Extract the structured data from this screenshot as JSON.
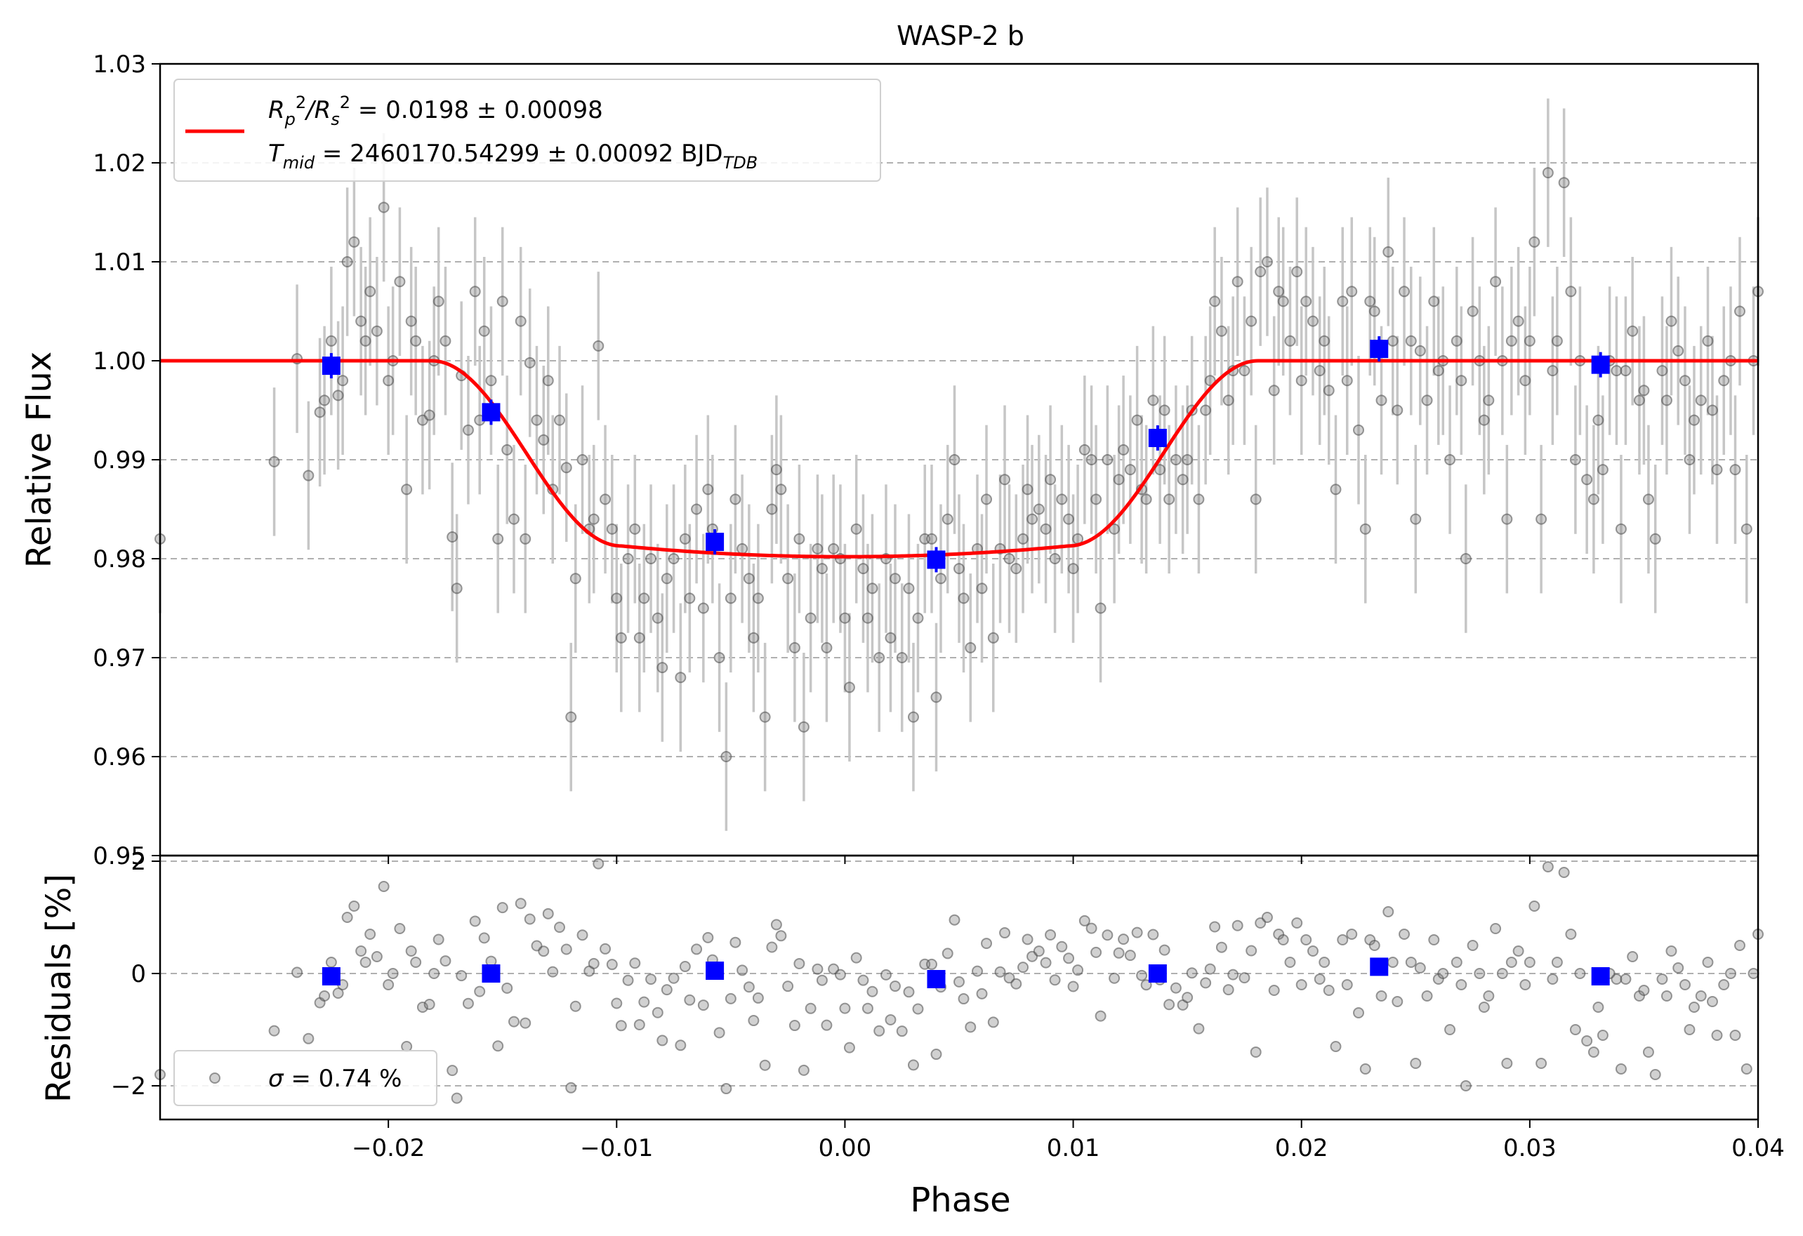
{
  "chart_data": [
    {
      "type": "scatter",
      "title": "WASP-2 b",
      "xlabel": "",
      "ylabel": "Relative Flux",
      "xlim": [
        -0.03,
        0.04
      ],
      "ylim": [
        0.95,
        1.03
      ],
      "yticks": [
        "0.95",
        "0.96",
        "0.97",
        "0.98",
        "0.99",
        "1.00",
        "1.01",
        "1.02",
        "1.03"
      ],
      "grid": "horizontal dashed",
      "legend_position": "top-left",
      "legend": [
        {
          "parts": [
            "R",
            "p",
            "2",
            "/R",
            "s",
            "2",
            " = 0.0198 ± 0.00098"
          ]
        },
        {
          "parts": [
            "T",
            "mid",
            " = 2460170.54299 ± 0.00092 BJD",
            "TDB"
          ]
        }
      ],
      "observed_error": 0.0075,
      "series_colors": {
        "observed": "#555555",
        "binned": "#0000ff",
        "model": "#ff0000"
      },
      "binned": {
        "x": [
          -0.0225,
          -0.0155,
          -0.0057,
          0.004,
          0.0137,
          0.0234,
          0.0331
        ],
        "y": [
          0.9995,
          0.9948,
          0.9817,
          0.9799,
          0.9922,
          1.0012,
          0.9996
        ]
      },
      "model": {
        "depth": 0.0198,
        "t1": -0.0181,
        "t2": -0.0098,
        "t3": 0.0098,
        "t4": 0.0181,
        "baseline": 1.0
      },
      "observed": {
        "x": [
          -0.03,
          -0.025,
          -0.024,
          -0.0235,
          -0.023,
          -0.0228,
          -0.0225,
          -0.0222,
          -0.022,
          -0.0218,
          -0.0215,
          -0.0212,
          -0.021,
          -0.0208,
          -0.0205,
          -0.0202,
          -0.02,
          -0.0198,
          -0.0195,
          -0.0192,
          -0.019,
          -0.0188,
          -0.0185,
          -0.0182,
          -0.018,
          -0.0178,
          -0.0175,
          -0.0172,
          -0.017,
          -0.0168,
          -0.0165,
          -0.0162,
          -0.016,
          -0.0158,
          -0.0155,
          -0.0152,
          -0.015,
          -0.0148,
          -0.0145,
          -0.0142,
          -0.014,
          -0.0138,
          -0.0135,
          -0.0132,
          -0.013,
          -0.0128,
          -0.0125,
          -0.0122,
          -0.012,
          -0.0118,
          -0.0115,
          -0.0112,
          -0.011,
          -0.0108,
          -0.0105,
          -0.0102,
          -0.01,
          -0.0098,
          -0.0095,
          -0.0092,
          -0.009,
          -0.0088,
          -0.0085,
          -0.0082,
          -0.008,
          -0.0078,
          -0.0075,
          -0.0072,
          -0.007,
          -0.0068,
          -0.0065,
          -0.0062,
          -0.006,
          -0.0058,
          -0.0055,
          -0.0052,
          -0.005,
          -0.0048,
          -0.0045,
          -0.0042,
          -0.004,
          -0.0038,
          -0.0035,
          -0.0032,
          -0.003,
          -0.0028,
          -0.0025,
          -0.0022,
          -0.002,
          -0.0018,
          -0.0015,
          -0.0012,
          -0.001,
          -0.0008,
          -0.0005,
          -0.0002,
          0.0,
          0.0002,
          0.0005,
          0.0008,
          0.001,
          0.0012,
          0.0015,
          0.0018,
          0.002,
          0.0022,
          0.0025,
          0.0028,
          0.003,
          0.0032,
          0.0035,
          0.0038,
          0.004,
          0.0042,
          0.0045,
          0.0048,
          0.005,
          0.0052,
          0.0055,
          0.0058,
          0.006,
          0.0062,
          0.0065,
          0.0068,
          0.007,
          0.0072,
          0.0075,
          0.0078,
          0.008,
          0.0082,
          0.0085,
          0.0088,
          0.009,
          0.0092,
          0.0095,
          0.0098,
          0.01,
          0.0102,
          0.0105,
          0.0108,
          0.011,
          0.0112,
          0.0115,
          0.0118,
          0.012,
          0.0122,
          0.0125,
          0.0128,
          0.013,
          0.0132,
          0.0135,
          0.0138,
          0.014,
          0.0142,
          0.0145,
          0.0148,
          0.015,
          0.0152,
          0.0155,
          0.0158,
          0.016,
          0.0162,
          0.0165,
          0.0168,
          0.017,
          0.0172,
          0.0175,
          0.0178,
          0.018,
          0.0182,
          0.0185,
          0.0188,
          0.019,
          0.0192,
          0.0195,
          0.0198,
          0.02,
          0.0202,
          0.0205,
          0.0208,
          0.021,
          0.0212,
          0.0215,
          0.0218,
          0.022,
          0.0222,
          0.0225,
          0.0228,
          0.023,
          0.0232,
          0.0235,
          0.0238,
          0.024,
          0.0242,
          0.0245,
          0.0248,
          0.025,
          0.0252,
          0.0255,
          0.0258,
          0.026,
          0.0262,
          0.0265,
          0.0268,
          0.027,
          0.0272,
          0.0275,
          0.0278,
          0.028,
          0.0282,
          0.0285,
          0.0288,
          0.029,
          0.0292,
          0.0295,
          0.0298,
          0.03,
          0.0302,
          0.0305,
          0.0308,
          0.031,
          0.0312,
          0.0315,
          0.0318,
          0.032,
          0.0322,
          0.0325,
          0.0328,
          0.033,
          0.0332,
          0.0335,
          0.0338,
          0.034,
          0.0342,
          0.0345,
          0.0348,
          0.035,
          0.0352,
          0.0355,
          0.0358,
          0.036,
          0.0362,
          0.0365,
          0.0368,
          0.037,
          0.0372,
          0.0375,
          0.0378,
          0.038,
          0.0382,
          0.0385,
          0.0388,
          0.039,
          0.0392,
          0.0395,
          0.0398,
          0.04
        ],
        "y": [
          0.982,
          0.9898,
          1.0002,
          0.9884,
          0.9948,
          0.996,
          1.002,
          0.9965,
          0.998,
          1.01,
          1.012,
          1.004,
          1.002,
          1.007,
          1.003,
          1.0155,
          0.998,
          1.0,
          1.008,
          0.987,
          1.004,
          1.002,
          0.994,
          0.9945,
          1.0,
          1.006,
          1.002,
          0.9822,
          0.977,
          0.9985,
          0.993,
          1.007,
          0.994,
          1.003,
          0.998,
          0.982,
          1.006,
          0.991,
          0.984,
          1.004,
          0.982,
          0.9998,
          0.994,
          0.992,
          0.998,
          0.987,
          0.994,
          0.9892,
          0.964,
          0.978,
          0.99,
          0.983,
          0.984,
          1.0015,
          0.986,
          0.983,
          0.976,
          0.972,
          0.98,
          0.983,
          0.972,
          0.976,
          0.98,
          0.974,
          0.969,
          0.978,
          0.98,
          0.968,
          0.982,
          0.976,
          0.985,
          0.975,
          0.987,
          0.983,
          0.97,
          0.96,
          0.976,
          0.986,
          0.981,
          0.978,
          0.972,
          0.976,
          0.964,
          0.985,
          0.989,
          0.987,
          0.978,
          0.971,
          0.982,
          0.963,
          0.974,
          0.981,
          0.979,
          0.971,
          0.981,
          0.98,
          0.974,
          0.967,
          0.983,
          0.979,
          0.974,
          0.977,
          0.97,
          0.98,
          0.972,
          0.978,
          0.97,
          0.977,
          0.964,
          0.974,
          0.982,
          0.982,
          0.966,
          0.978,
          0.984,
          0.99,
          0.979,
          0.976,
          0.971,
          0.981,
          0.977,
          0.986,
          0.972,
          0.981,
          0.988,
          0.98,
          0.979,
          0.982,
          0.987,
          0.984,
          0.985,
          0.983,
          0.988,
          0.98,
          0.986,
          0.984,
          0.979,
          0.982,
          0.991,
          0.99,
          0.986,
          0.975,
          0.99,
          0.983,
          0.988,
          0.991,
          0.989,
          0.994,
          0.987,
          0.986,
          0.996,
          0.989,
          0.995,
          0.986,
          0.99,
          0.988,
          0.99,
          0.995,
          0.986,
          0.995,
          0.998,
          1.006,
          1.003,
          0.996,
          0.999,
          1.008,
          0.999,
          1.004,
          0.986,
          1.009,
          1.01,
          0.997,
          1.007,
          1.006,
          1.002,
          1.009,
          0.998,
          1.006,
          1.004,
          0.999,
          1.002,
          0.997,
          0.987,
          1.006,
          0.998,
          1.007,
          0.993,
          0.983,
          1.006,
          1.005,
          0.996,
          1.011,
          1.002,
          0.995,
          1.007,
          1.002,
          0.984,
          1.001,
          0.996,
          1.006,
          0.999,
          1.0,
          0.99,
          1.002,
          0.998,
          0.98,
          1.005,
          1.0,
          0.994,
          0.996,
          1.008,
          1.0,
          0.984,
          1.002,
          1.004,
          0.998,
          1.002,
          1.012,
          0.984,
          1.019,
          0.999,
          1.002,
          1.018,
          1.007,
          0.99,
          1.0,
          0.988,
          0.986,
          0.994,
          0.989,
          1.0,
          0.999,
          0.983,
          0.999,
          1.003,
          0.996,
          0.997,
          0.986,
          0.982,
          0.999,
          0.996,
          1.004,
          1.001,
          0.998,
          0.99,
          0.994,
          0.996,
          1.002,
          0.995,
          0.989,
          0.998,
          1.0,
          0.989,
          1.005,
          0.983,
          1.0,
          1.007
        ]
      }
    },
    {
      "type": "scatter",
      "title": "",
      "xlabel": "Phase",
      "ylabel": "Residuals [%]",
      "xlim": [
        -0.03,
        0.04
      ],
      "ylim": [
        -2.6,
        2.1
      ],
      "xticks": [
        "−0.02",
        "−0.01",
        "0.00",
        "0.01",
        "0.02",
        "0.03",
        "0.04"
      ],
      "yticks": [
        "−2",
        "0",
        "2"
      ],
      "grid": "horizontal dashed",
      "legend_position": "bottom-left",
      "legend": [
        {
          "parts": [
            "σ",
            " = 0.74 %"
          ]
        }
      ],
      "binned_residuals": [
        -0.05,
        0.0,
        0.05,
        -0.1,
        0.0,
        0.12,
        -0.05
      ]
    }
  ]
}
